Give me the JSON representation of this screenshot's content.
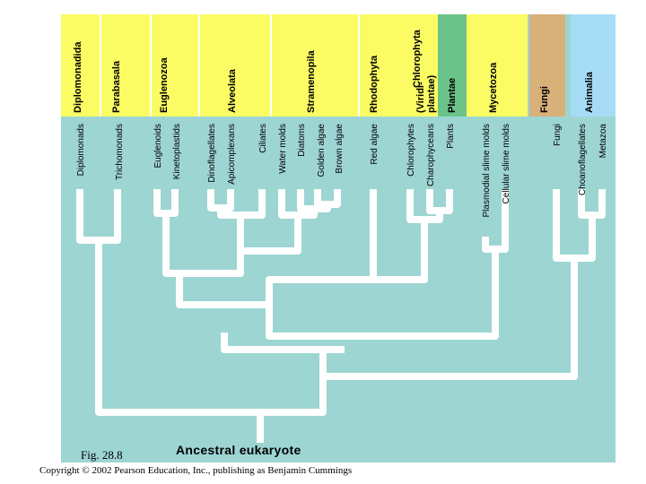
{
  "diagram": {
    "root_label": "Ancestral eukaryote",
    "colors": {
      "background": "#9dd5d3",
      "branch": "#ffffff",
      "yellow": "#fbfb64",
      "plantae_green": "#6cc389",
      "fungi_tan": "#d8b07a",
      "animalia_blue": "#a6dcf6"
    },
    "groups": [
      {
        "label": "Diplomonadida",
        "color": "yellow"
      },
      {
        "label": "Parabasala",
        "color": "yellow"
      },
      {
        "label": "Euglenozoa",
        "color": "yellow"
      },
      {
        "label": "Alveolata",
        "color": "yellow"
      },
      {
        "label": "Stramenopila",
        "color": "yellow"
      },
      {
        "label": "Rhodophyta",
        "color": "yellow"
      },
      {
        "label": "Chlorophyta",
        "color": "yellow"
      },
      {
        "label": "Plantae",
        "color": "plantae_green"
      },
      {
        "label": "(Viridi-",
        "color": "yellow"
      },
      {
        "label": "plantae)",
        "color": "yellow"
      },
      {
        "label": "Mycetozoa",
        "color": "yellow"
      },
      {
        "label": "Fungi",
        "color": "fungi_tan"
      },
      {
        "label": "Animalia",
        "color": "animalia_blue"
      }
    ],
    "taxa": [
      "Diplomonads",
      "Trichomonads",
      "Euglenoids",
      "Kinetoplastids",
      "Dinoflagellates",
      "Apicomplexans",
      "Ciliates",
      "Water molds",
      "Diatoms",
      "Golden algae",
      "Brown algae",
      "Red algae",
      "Chlorophytes",
      "Charophyceans",
      "Plants",
      "Plasmodial slime molds",
      "Cellular slime molds",
      "Fungi",
      "Choanoflagellates",
      "Metazoa"
    ]
  },
  "caption": {
    "figure": "Fig. 28.8",
    "copyright": "Copyright © 2002 Pearson Education, Inc., publishing as Benjamin Cummings"
  }
}
